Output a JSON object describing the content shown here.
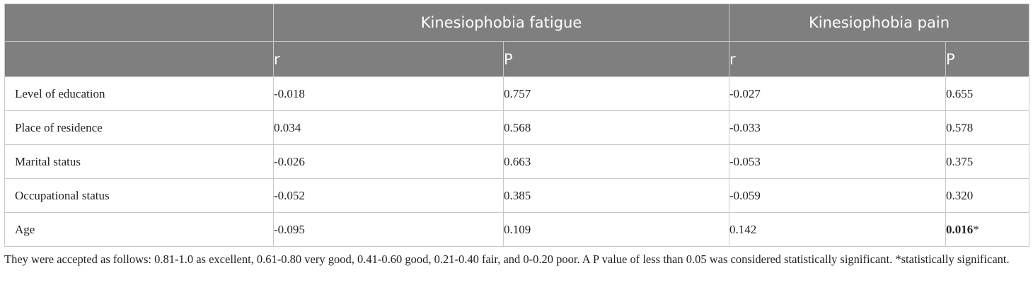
{
  "table": {
    "group_headers": [
      "",
      "Kinesiophobia fatigue",
      "Kinesiophobia pain"
    ],
    "sub_headers": [
      "",
      "r",
      "P",
      "r",
      "P"
    ],
    "rows": [
      {
        "label": "Level of education",
        "fatigue_r": "-0.018",
        "fatigue_p": "0.757",
        "pain_r": "-0.027",
        "pain_p": "0.655",
        "pain_p_mark": ""
      },
      {
        "label": "Place of residence",
        "fatigue_r": "0.034",
        "fatigue_p": "0.568",
        "pain_r": "-0.033",
        "pain_p": "0.578",
        "pain_p_mark": ""
      },
      {
        "label": "Marital status",
        "fatigue_r": "-0.026",
        "fatigue_p": "0.663",
        "pain_r": "-0.053",
        "pain_p": "0.375",
        "pain_p_mark": ""
      },
      {
        "label": "Occupational status",
        "fatigue_r": "-0.052",
        "fatigue_p": "0.385",
        "pain_r": "-0.059",
        "pain_p": "0.320",
        "pain_p_mark": ""
      },
      {
        "label": "Age",
        "fatigue_r": "-0.095",
        "fatigue_p": "0.109",
        "pain_r": "0.142",
        "pain_p": "0.016",
        "pain_p_mark": "*"
      }
    ]
  },
  "footnote": "They were accepted as follows: 0.81-1.0 as excellent, 0.61-0.80 very good, 0.41-0.60 good, 0.21-0.40 fair, and 0-0.20 poor. A P value of less than 0.05 was considered statistically significant. *statistically significant."
}
